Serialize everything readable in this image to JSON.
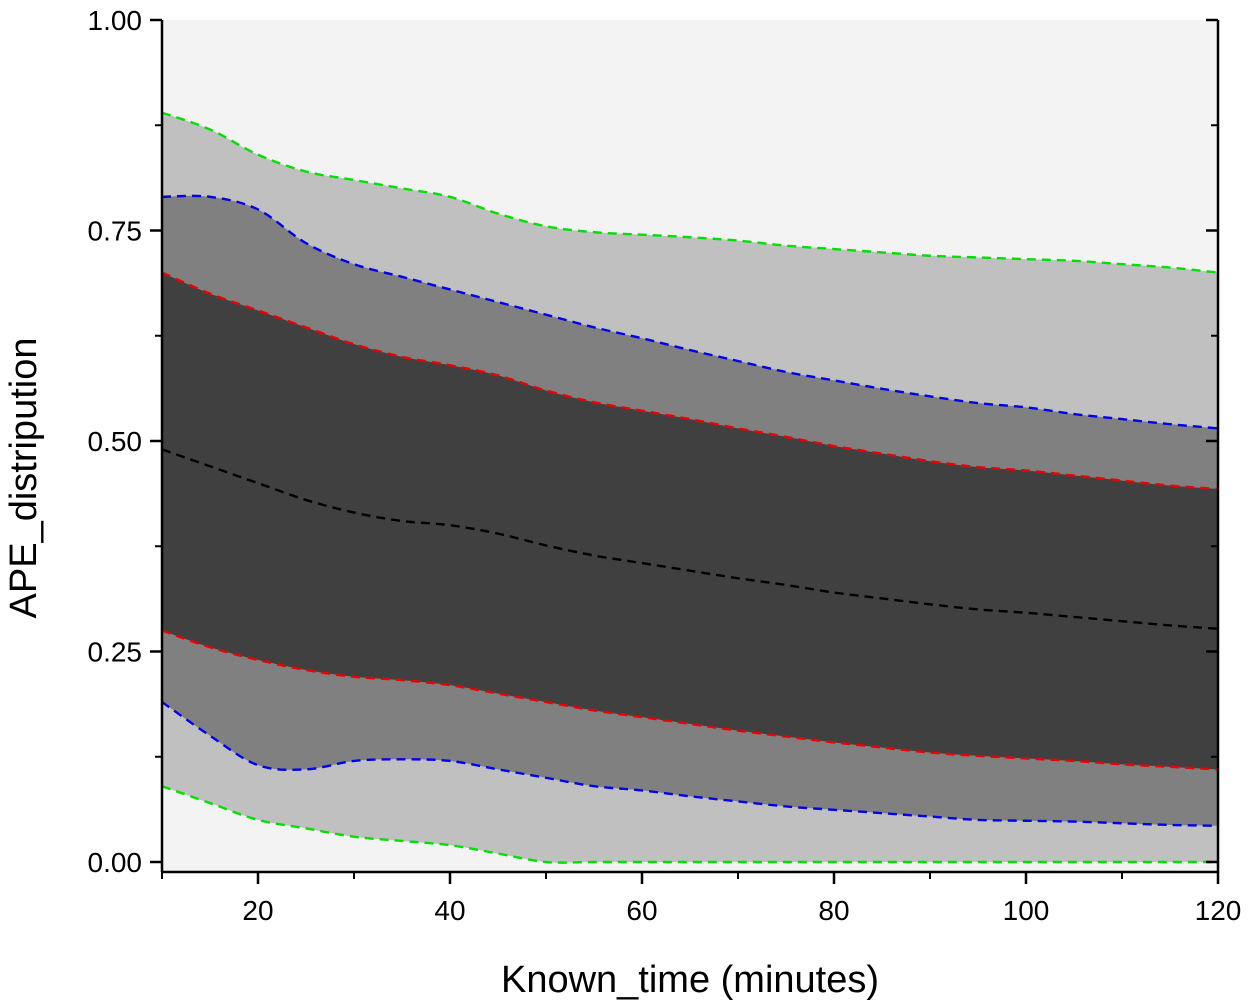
{
  "chart_data": {
    "type": "area",
    "title": "",
    "xlabel": "Known_time (minutes)",
    "ylabel": "APE_distripution",
    "xlim": [
      10,
      120
    ],
    "ylim": [
      0,
      1
    ],
    "x_ticks": [
      20,
      40,
      60,
      80,
      100,
      120
    ],
    "x_tick_labels": [
      "20",
      "40",
      "60",
      "80",
      "100",
      "120"
    ],
    "y_ticks": [
      0,
      0.25,
      0.5,
      0.75,
      1.0
    ],
    "y_tick_labels": [
      "0.00",
      "0.25",
      "0.50",
      "0.75",
      "1.00"
    ],
    "grid": false,
    "legend": "none",
    "background_color": "#f3f3f3",
    "x": [
      10,
      15,
      20,
      25,
      30,
      35,
      40,
      45,
      50,
      55,
      60,
      65,
      70,
      75,
      80,
      85,
      90,
      95,
      100,
      105,
      110,
      115,
      120
    ],
    "bands": [
      {
        "fill": "#c0c0c0",
        "edge_color": "#00e000",
        "upper": [
          0.89,
          0.87,
          0.84,
          0.82,
          0.81,
          0.8,
          0.79,
          0.77,
          0.755,
          0.748,
          0.745,
          0.742,
          0.738,
          0.732,
          0.728,
          0.724,
          0.72,
          0.718,
          0.716,
          0.714,
          0.71,
          0.706,
          0.7
        ],
        "lower": [
          0.09,
          0.07,
          0.05,
          0.04,
          0.03,
          0.025,
          0.02,
          0.01,
          0.0,
          0.0,
          0.0,
          0.0,
          0.0,
          0.0,
          0.0,
          0.0,
          0.0,
          0.0,
          0.0,
          0.0,
          0.0,
          0.0,
          0.0
        ]
      },
      {
        "fill": "#808080",
        "edge_color": "#0000ee",
        "upper": [
          0.79,
          0.79,
          0.775,
          0.735,
          0.71,
          0.695,
          0.68,
          0.665,
          0.65,
          0.635,
          0.622,
          0.608,
          0.595,
          0.582,
          0.572,
          0.562,
          0.553,
          0.545,
          0.54,
          0.532,
          0.526,
          0.52,
          0.515
        ],
        "lower": [
          0.19,
          0.15,
          0.115,
          0.11,
          0.12,
          0.122,
          0.12,
          0.11,
          0.1,
          0.09,
          0.085,
          0.078,
          0.072,
          0.066,
          0.062,
          0.058,
          0.054,
          0.05,
          0.049,
          0.048,
          0.046,
          0.044,
          0.043
        ]
      },
      {
        "fill": "#404040",
        "edge_color": "#ee0000",
        "upper": [
          0.7,
          0.675,
          0.655,
          0.635,
          0.615,
          0.6,
          0.59,
          0.578,
          0.56,
          0.546,
          0.536,
          0.526,
          0.515,
          0.505,
          0.494,
          0.485,
          0.476,
          0.469,
          0.465,
          0.459,
          0.453,
          0.447,
          0.443
        ],
        "lower": [
          0.275,
          0.255,
          0.24,
          0.228,
          0.22,
          0.216,
          0.21,
          0.2,
          0.19,
          0.18,
          0.172,
          0.164,
          0.156,
          0.149,
          0.142,
          0.136,
          0.13,
          0.126,
          0.123,
          0.12,
          0.116,
          0.113,
          0.11
        ]
      }
    ],
    "median": {
      "color": "#000000",
      "values": [
        0.49,
        0.47,
        0.45,
        0.43,
        0.415,
        0.405,
        0.4,
        0.39,
        0.376,
        0.364,
        0.355,
        0.346,
        0.337,
        0.329,
        0.32,
        0.313,
        0.306,
        0.3,
        0.296,
        0.291,
        0.286,
        0.281,
        0.277
      ]
    }
  }
}
